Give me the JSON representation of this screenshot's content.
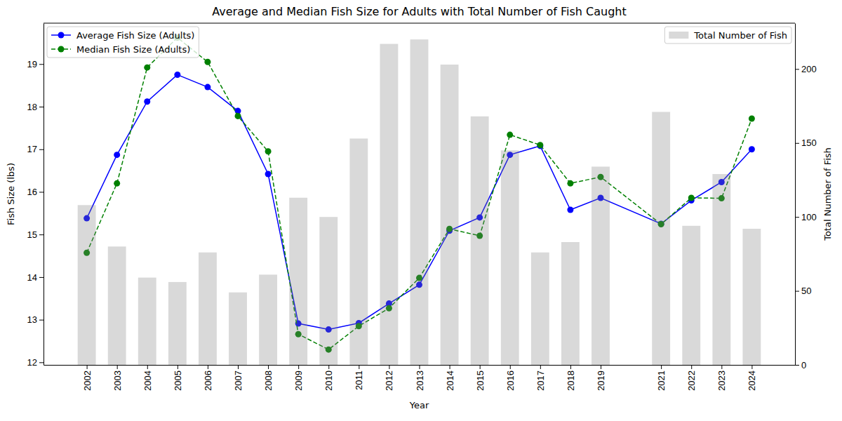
{
  "chart_data": {
    "type": "line",
    "title": "Average and Median Fish Size for Adults with Total Number of Fish Caught",
    "x_label": "Year",
    "y_label": "Fish Size (lbs)",
    "y2_label": "Total Number of Fish",
    "x": [
      2002,
      2003,
      2004,
      2005,
      2006,
      2007,
      2008,
      2009,
      2010,
      2011,
      2012,
      2013,
      2014,
      2015,
      2016,
      2017,
      2018,
      2019,
      2021,
      2022,
      2023,
      2024
    ],
    "xlim": [
      2000.57,
      2025.43
    ],
    "xticks": [
      2002,
      2003,
      2004,
      2005,
      2006,
      2007,
      2008,
      2009,
      2010,
      2011,
      2012,
      2013,
      2014,
      2015,
      2016,
      2017,
      2018,
      2019,
      2021,
      2022,
      2023,
      2024
    ],
    "ylim": [
      11.94,
      19.96
    ],
    "yticks": [
      12,
      13,
      14,
      15,
      16,
      17,
      18,
      19
    ],
    "y2lim": [
      0,
      231
    ],
    "y2ticks": [
      0,
      50,
      100,
      150,
      200
    ],
    "legend": "upper left",
    "series": [
      {
        "name": "Average Fish Size (Adults)",
        "type": "line",
        "color": "blue",
        "marker": "circle",
        "line_style": "solid",
        "values": [
          15.38,
          16.87,
          18.12,
          18.75,
          18.46,
          17.9,
          16.42,
          12.91,
          12.77,
          12.92,
          13.38,
          13.82,
          15.09,
          15.4,
          16.87,
          17.08,
          15.58,
          15.86,
          15.25,
          15.8,
          16.23,
          17.0
        ]
      },
      {
        "name": "Median Fish Size (Adults)",
        "type": "line",
        "color": "green",
        "marker": "circle",
        "line_style": "dashed",
        "values": [
          14.57,
          16.2,
          18.92,
          19.62,
          19.05,
          17.78,
          16.95,
          12.66,
          12.3,
          12.85,
          13.27,
          13.98,
          15.13,
          14.97,
          17.34,
          17.1,
          16.2,
          16.35,
          15.24,
          15.86,
          15.85,
          17.72
        ]
      },
      {
        "name": "Total Number of Fish",
        "type": "bar",
        "axis": "y2",
        "color": "gray",
        "values": [
          108,
          80,
          59,
          56,
          76,
          49,
          61,
          113,
          100,
          153,
          217,
          220,
          203,
          168,
          145,
          76,
          83,
          134,
          171,
          94,
          129,
          92
        ]
      }
    ]
  }
}
